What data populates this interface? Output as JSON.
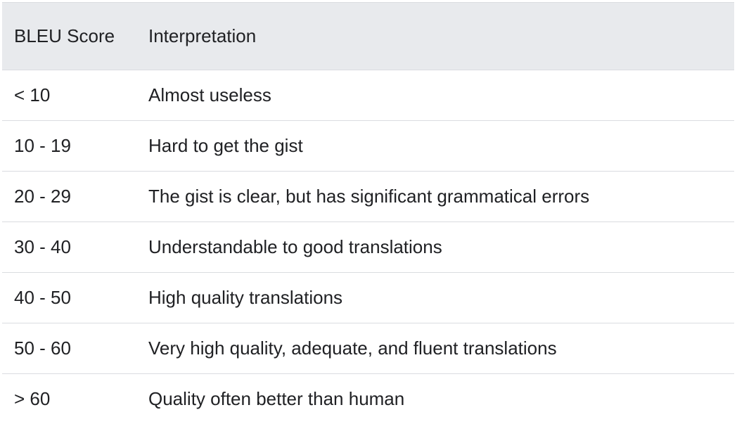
{
  "table": {
    "headers": {
      "score": "BLEU Score",
      "interpretation": "Interpretation"
    },
    "rows": [
      {
        "score": "< 10",
        "interpretation": "Almost useless"
      },
      {
        "score": "10 - 19",
        "interpretation": "Hard to get the gist"
      },
      {
        "score": "20 - 29",
        "interpretation": "The gist is clear, but has significant grammatical errors"
      },
      {
        "score": "30 - 40",
        "interpretation": "Understandable to good translations"
      },
      {
        "score": "40 - 50",
        "interpretation": "High quality translations"
      },
      {
        "score": "50 - 60",
        "interpretation": "Very high quality, adequate, and fluent translations"
      },
      {
        "score": "> 60",
        "interpretation": "Quality often better than human"
      }
    ]
  }
}
